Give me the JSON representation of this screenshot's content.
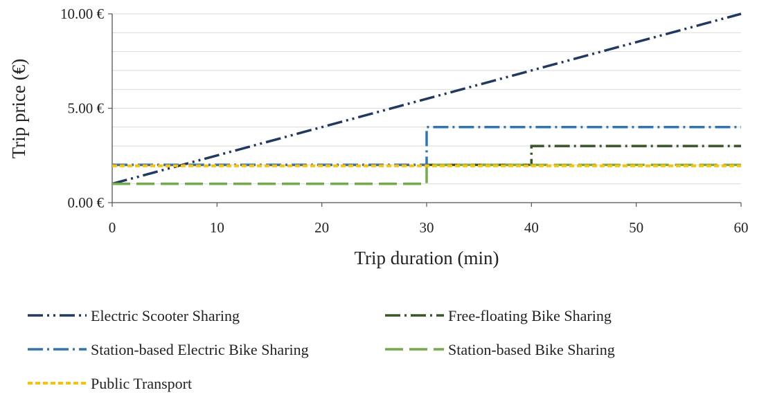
{
  "chart_data": {
    "type": "line",
    "xlabel": "Trip duration (min)",
    "ylabel": "Trip price (€)",
    "xlim": [
      0,
      60
    ],
    "ylim": [
      0,
      10
    ],
    "x_ticks": [
      0,
      10,
      20,
      30,
      40,
      50,
      60
    ],
    "y_ticks": [
      0,
      5,
      10
    ],
    "y_tick_labels": [
      "0.00 €",
      "5.00 €",
      "10.00 €"
    ],
    "grid": "horizontal",
    "legend_position": "bottom",
    "series": [
      {
        "name": "Electric Scooter Sharing",
        "color": "#1f3864",
        "dash": "dash-dot-dot",
        "x": [
          0,
          60
        ],
        "y": [
          1.0,
          10.0
        ]
      },
      {
        "name": "Free-floating Bike Sharing",
        "color": "#375623",
        "dash": "dash-dot",
        "x": [
          0,
          40,
          40,
          60
        ],
        "y": [
          2.0,
          2.0,
          3.0,
          3.0
        ]
      },
      {
        "name": "Station-based Electric Bike Sharing",
        "color": "#2e75b6",
        "dash": "dash-dot",
        "x": [
          0,
          30,
          30,
          60
        ],
        "y": [
          2.0,
          2.0,
          4.0,
          4.0
        ]
      },
      {
        "name": "Station-based Bike Sharing",
        "color": "#70ad47",
        "dash": "long-dash",
        "x": [
          0,
          20,
          20,
          30,
          30,
          60
        ],
        "y": [
          1.0,
          1.0,
          1.0,
          1.0,
          2.0,
          2.0
        ]
      },
      {
        "name": "Public Transport",
        "color": "#ffc000",
        "dash": "short-dash",
        "x": [
          0,
          60
        ],
        "y": [
          1.95,
          1.95
        ]
      }
    ]
  }
}
